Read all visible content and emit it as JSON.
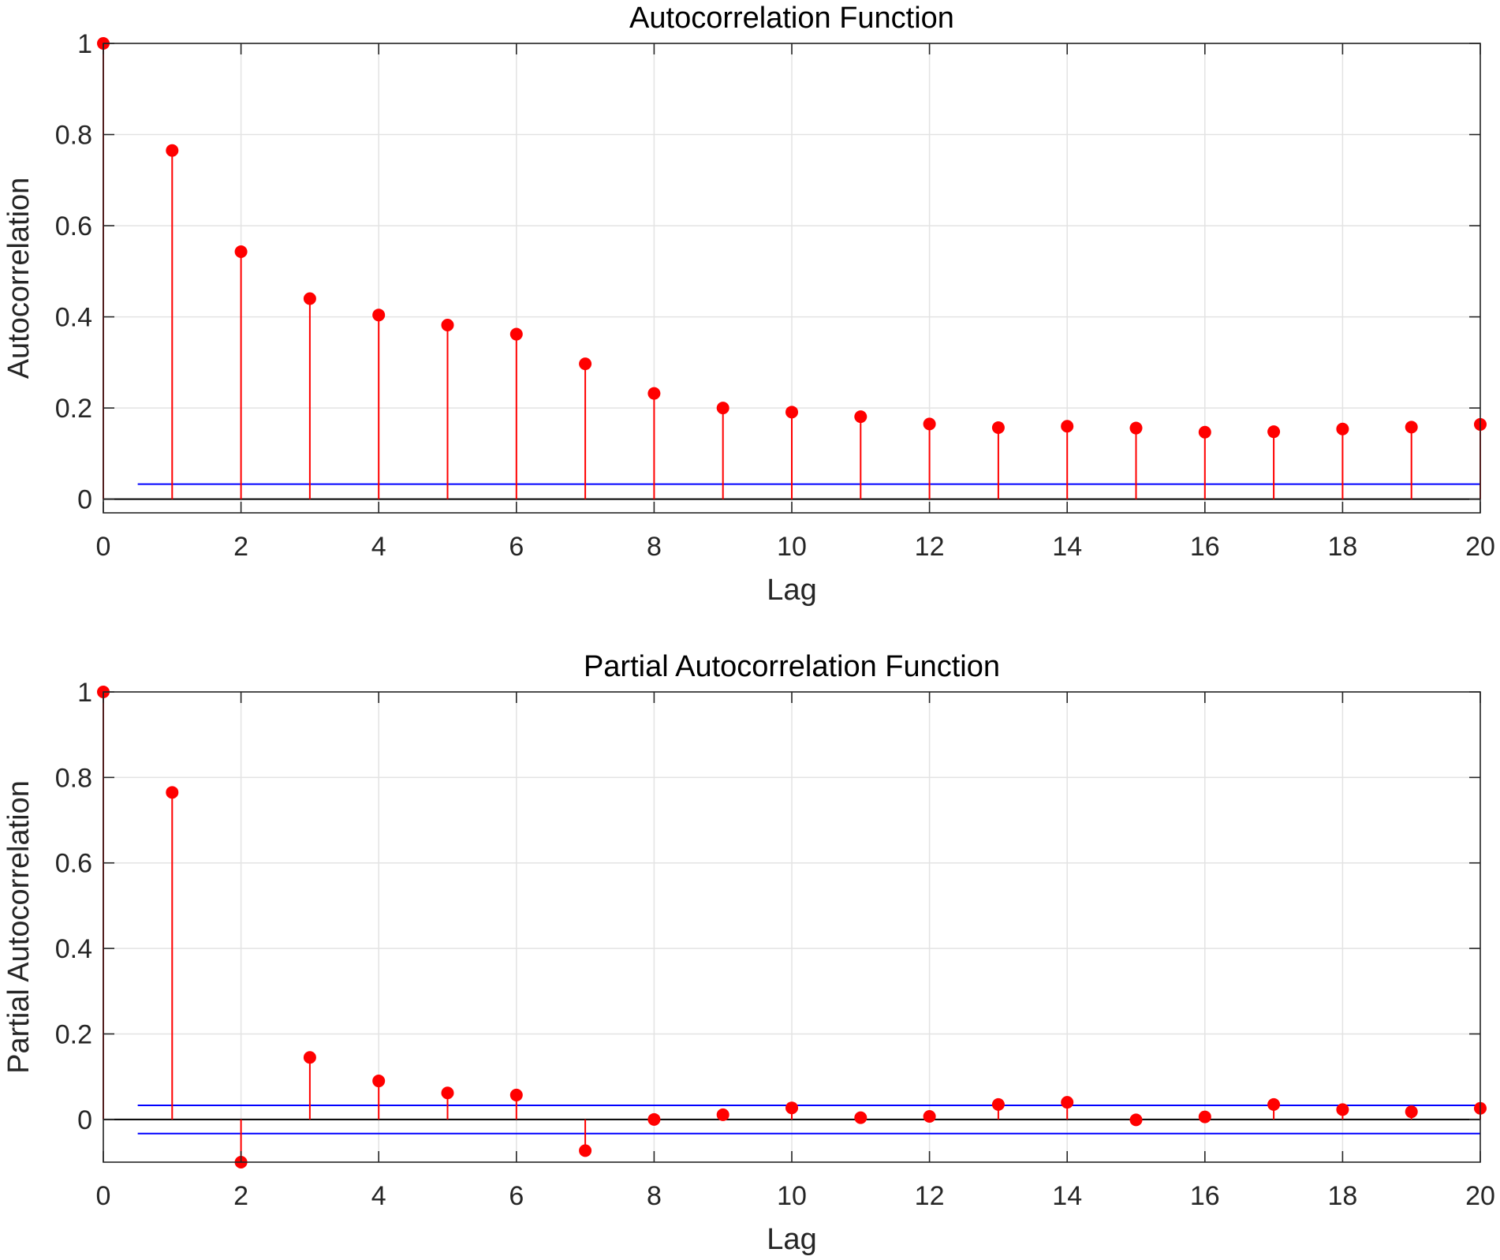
{
  "chart_data": [
    {
      "type": "stem",
      "title": "Autocorrelation Function",
      "xlabel": "Lag",
      "ylabel": "Autocorrelation",
      "xlim": [
        0,
        20
      ],
      "ylim": [
        -0.03,
        1
      ],
      "xticks": [
        0,
        2,
        4,
        6,
        8,
        10,
        12,
        14,
        16,
        18,
        20
      ],
      "yticks": [
        0,
        0.2,
        0.4,
        0.6,
        0.8,
        1
      ],
      "ytick_labels": [
        "0",
        "0.2",
        "0.4",
        "0.6",
        "0.8",
        "1"
      ],
      "grid": true,
      "colors": {
        "stem": "#ff0000",
        "bounds": "#0000ff",
        "zero": "#000000"
      },
      "x": [
        0,
        1,
        2,
        3,
        4,
        5,
        6,
        7,
        8,
        9,
        10,
        11,
        12,
        13,
        14,
        15,
        16,
        17,
        18,
        19,
        20
      ],
      "values": [
        1,
        0.765,
        0.543,
        0.44,
        0.404,
        0.382,
        0.362,
        0.297,
        0.232,
        0.2,
        0.191,
        0.181,
        0.165,
        0.157,
        0.16,
        0.156,
        0.147,
        0.148,
        0.154,
        0.158,
        0.164
      ],
      "bounds": [
        0.033
      ],
      "bounds_x": [
        0.5,
        20
      ]
    },
    {
      "type": "stem",
      "title": "Partial Autocorrelation Function",
      "xlabel": "Lag",
      "ylabel": "Partial Autocorrelation",
      "xlim": [
        0,
        20
      ],
      "ylim": [
        -0.1,
        1
      ],
      "xticks": [
        0,
        2,
        4,
        6,
        8,
        10,
        12,
        14,
        16,
        18,
        20
      ],
      "yticks": [
        0,
        0.2,
        0.4,
        0.6,
        0.8,
        1
      ],
      "ytick_labels": [
        "0",
        "0.2",
        "0.4",
        "0.6",
        "0.8",
        "1"
      ],
      "grid": true,
      "colors": {
        "stem": "#ff0000",
        "bounds": "#0000ff",
        "zero": "#000000"
      },
      "x": [
        0,
        1,
        2,
        3,
        4,
        5,
        6,
        7,
        8,
        9,
        10,
        11,
        12,
        13,
        14,
        15,
        16,
        17,
        18,
        19,
        20
      ],
      "values": [
        1,
        0.765,
        -0.1,
        0.145,
        0.09,
        0.062,
        0.057,
        -0.073,
        0,
        0.011,
        0.027,
        0.004,
        0.007,
        0.035,
        0.04,
        -0.001,
        0.006,
        0.035,
        0.023,
        0.018,
        0.026
      ],
      "bounds": [
        0.033,
        -0.033
      ],
      "bounds_x": [
        0.5,
        20
      ]
    }
  ]
}
